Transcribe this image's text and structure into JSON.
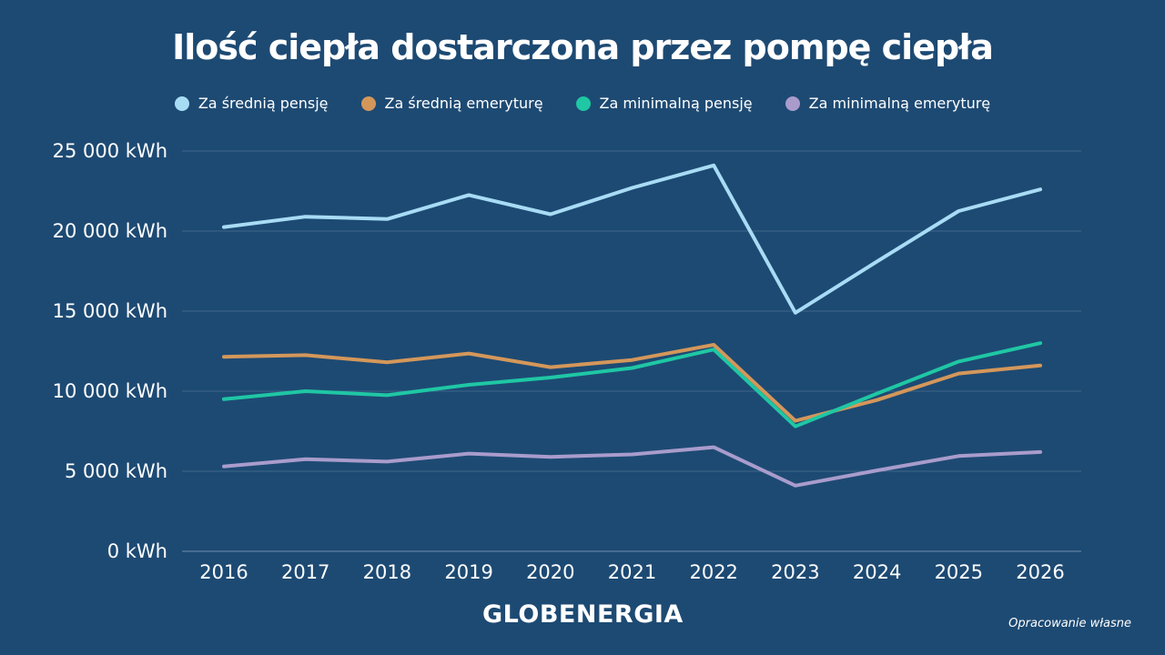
{
  "chart_data": {
    "type": "line",
    "title": "Ilość ciepła dostarczona przez pompę ciepła",
    "x": [
      "2016",
      "2017",
      "2018",
      "2019",
      "2020",
      "2021",
      "2022",
      "2023",
      "2024",
      "2025",
      "2026"
    ],
    "ylim": [
      0,
      25000
    ],
    "yticks": [
      {
        "value": 0,
        "label": "0 kWh"
      },
      {
        "value": 5000,
        "label": "5 000 kWh"
      },
      {
        "value": 10000,
        "label": "10 000 kWh"
      },
      {
        "value": 15000,
        "label": "15 000 kWh"
      },
      {
        "value": 20000,
        "label": "20 000 kWh"
      },
      {
        "value": 25000,
        "label": "25 000 kWh"
      }
    ],
    "grid": true,
    "legend_position": "top",
    "series": [
      {
        "name": "Za średnią pensję",
        "color": "#a8dcf5",
        "values": [
          20250,
          20900,
          20750,
          22250,
          21050,
          22700,
          24100,
          14900,
          18100,
          21250,
          22600
        ]
      },
      {
        "name": "Za średnią emeryturę",
        "color": "#d4975a",
        "values": [
          12150,
          12250,
          11800,
          12350,
          11500,
          11950,
          12900,
          8150,
          9450,
          11100,
          11600
        ]
      },
      {
        "name": "Za minimalną pensję",
        "color": "#1fc7a4",
        "values": [
          9500,
          10000,
          9750,
          10400,
          10850,
          11450,
          12600,
          7800,
          9850,
          11850,
          13000
        ]
      },
      {
        "name": "Za minimalną emeryturę",
        "color": "#a99ccc",
        "values": [
          5300,
          5750,
          5600,
          6100,
          5900,
          6050,
          6500,
          4100,
          5050,
          5950,
          6200
        ]
      }
    ]
  },
  "brand": "GLOBENERGIA",
  "note": "Opracowanie własne"
}
